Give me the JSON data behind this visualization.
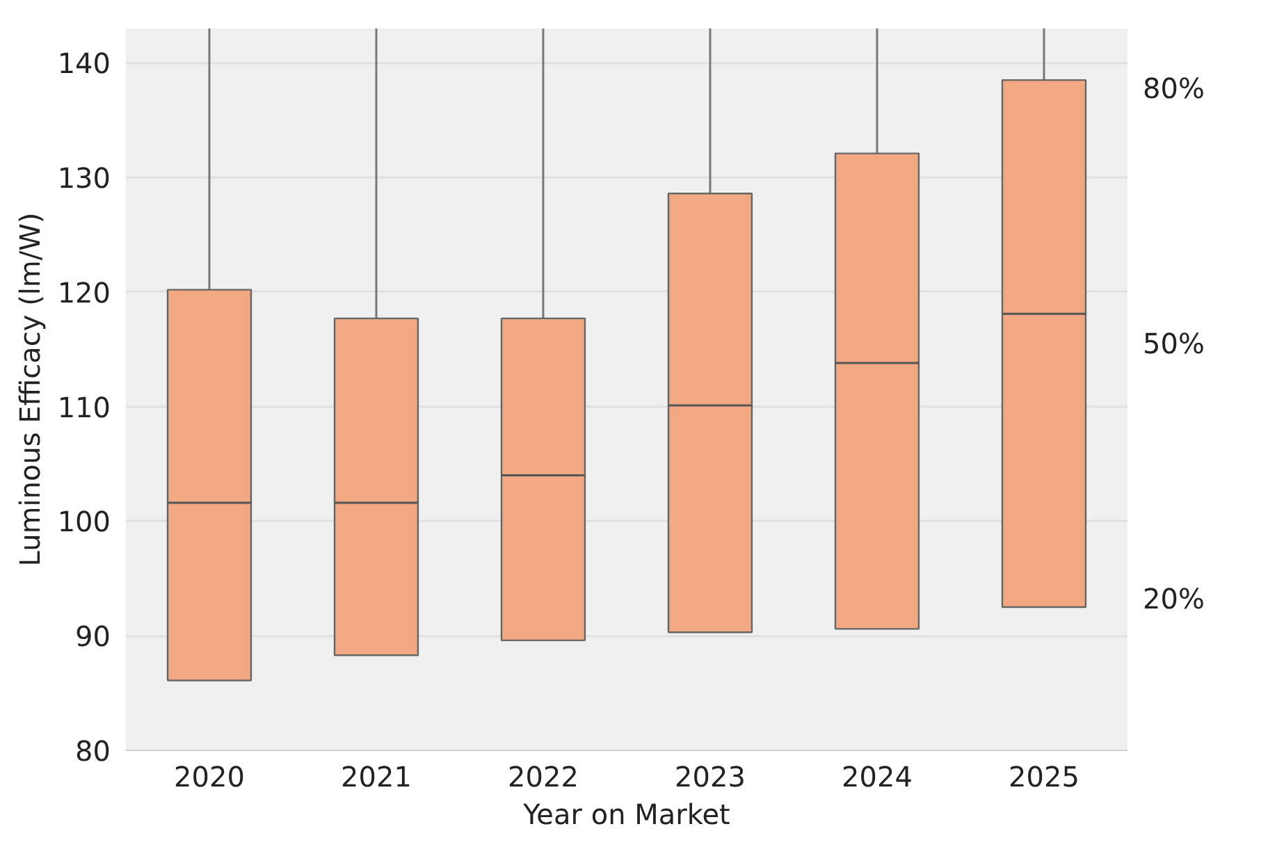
{
  "chart_data": {
    "type": "box",
    "xlabel": "Year on Market",
    "ylabel": "Luminous Efficacy (lm/W)",
    "categories": [
      "2020",
      "2021",
      "2022",
      "2023",
      "2024",
      "2025"
    ],
    "boxes": [
      {
        "low": 86.1,
        "q1": 86.1,
        "median": 101.6,
        "q3": 120.2,
        "high": 143
      },
      {
        "low": 88.3,
        "q1": 88.3,
        "median": 101.6,
        "q3": 117.7,
        "high": 143
      },
      {
        "low": 89.6,
        "q1": 89.6,
        "median": 104.0,
        "q3": 117.7,
        "high": 143
      },
      {
        "low": 90.3,
        "q1": 90.3,
        "median": 110.1,
        "q3": 128.6,
        "high": 143
      },
      {
        "low": 90.6,
        "q1": 90.6,
        "median": 113.8,
        "q3": 132.1,
        "high": 143
      },
      {
        "low": 92.5,
        "q1": 92.5,
        "median": 118.1,
        "q3": 138.5,
        "high": 143
      }
    ],
    "color": "#f2a882",
    "ylim": [
      80,
      143
    ],
    "yticks": [
      80,
      90,
      100,
      110,
      120,
      130,
      140
    ],
    "y2lim": [
      2.2,
      87
    ],
    "y2ticks": [
      {
        "value": 20,
        "label": "20%"
      },
      {
        "value": 50,
        "label": "50%"
      },
      {
        "value": 80,
        "label": "80%"
      }
    ],
    "grid": "y"
  }
}
